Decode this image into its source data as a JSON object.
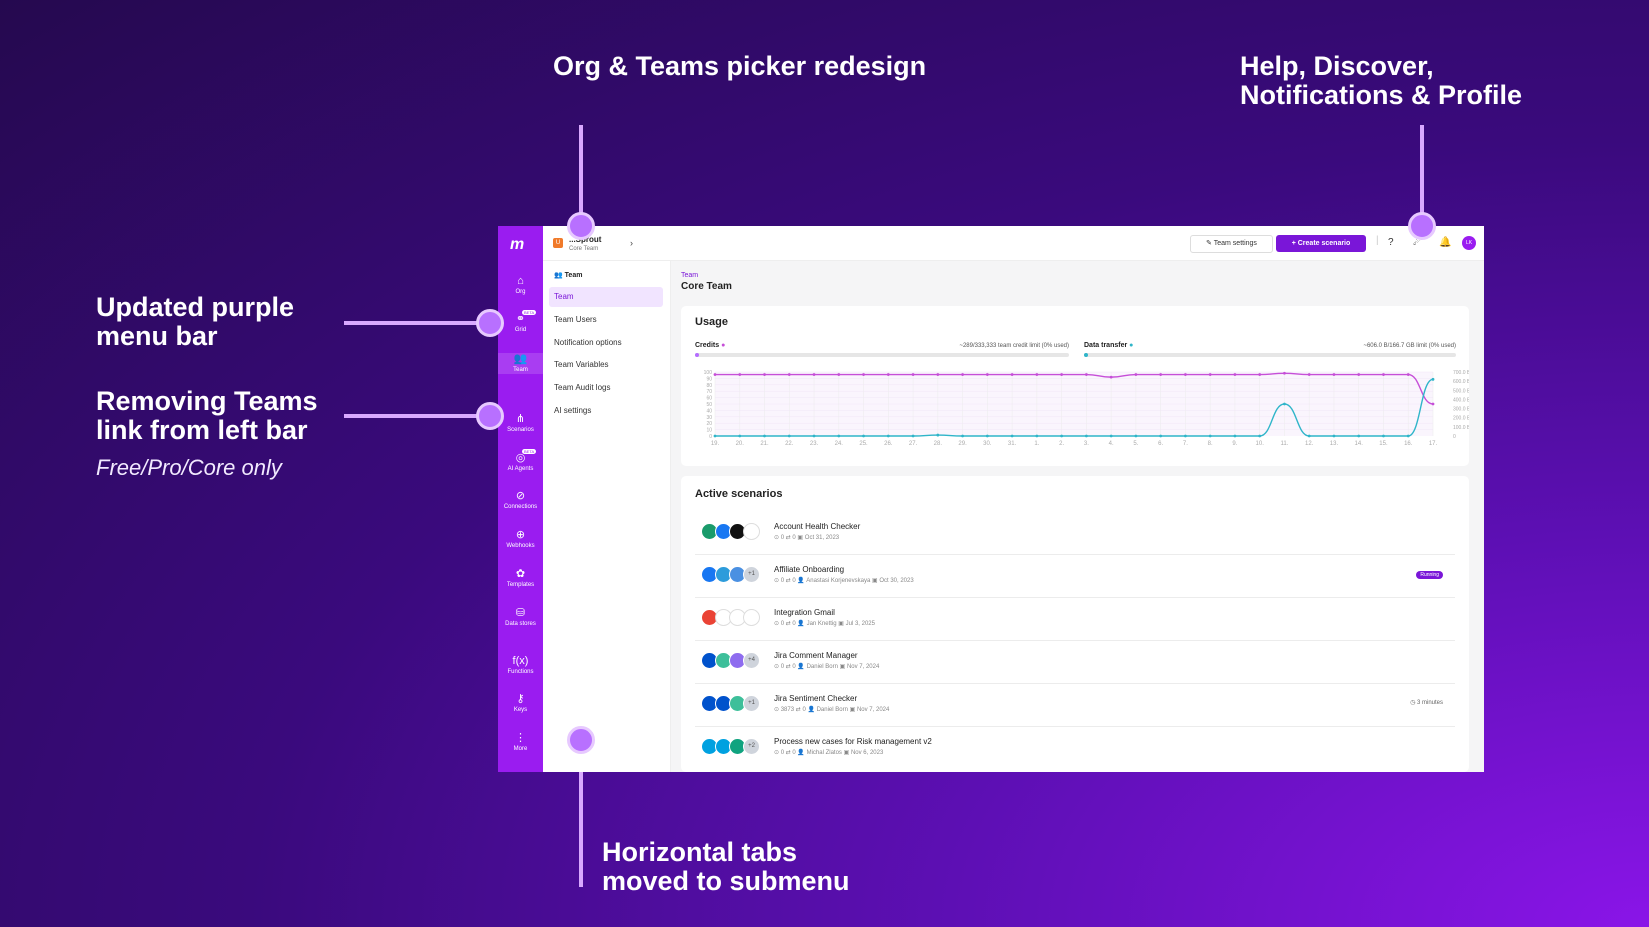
{
  "annotations": {
    "org_picker": "Org & Teams picker redesign",
    "help": "Help, Discover, Notifications & Profile",
    "purple_bar": "Updated purple menu bar",
    "teams_link": "Removing Teams link from left bar",
    "teams_link_sub": "Free/Pro/Core only",
    "tabs": "Horizontal tabs moved to submenu"
  },
  "leftbar": {
    "items": [
      {
        "label": "Org",
        "icon": "home-icon"
      },
      {
        "label": "Grid",
        "icon": "grid-icon",
        "badge": "BETA"
      },
      {
        "label": "Team",
        "icon": "team-icon"
      },
      {
        "label": "Scenarios",
        "icon": "scenarios-icon"
      },
      {
        "label": "AI Agents",
        "icon": "ai-agent-icon",
        "badge": "BETA"
      },
      {
        "label": "Connections",
        "icon": "link-icon"
      },
      {
        "label": "Webhooks",
        "icon": "globe-icon"
      },
      {
        "label": "Templates",
        "icon": "puzzle-icon"
      },
      {
        "label": "Data stores",
        "icon": "database-icon"
      },
      {
        "label": "Functions",
        "icon": "function-icon"
      },
      {
        "label": "Keys",
        "icon": "key-icon"
      },
      {
        "label": "More",
        "icon": "more-icon"
      }
    ]
  },
  "topbar": {
    "org_name": "...Sprout",
    "team_name": "Core Team",
    "org_initial": "U",
    "team_settings": "Team settings",
    "create_scenario": "Create scenario",
    "avatar": "LK"
  },
  "submenu": {
    "header": "Team",
    "items": [
      "Team",
      "Team Users",
      "Notification options",
      "Team Variables",
      "Team Audit logs",
      "AI settings"
    ]
  },
  "main": {
    "breadcrumb": "Team",
    "title": "Core Team",
    "usage": {
      "title": "Usage",
      "credits_label": "Credits",
      "credits_value": "~289/333,333 team credit limit (0% used)",
      "credits_fraction": 0.001,
      "transfer_label": "Data transfer",
      "transfer_value": "~606.0 B/166.7 GB limit (0% used)",
      "transfer_fraction": 0.001
    },
    "scenarios_title": "Active scenarios",
    "scenarios": [
      {
        "name": "Account Health Checker",
        "ops": "0",
        "transfers": "0",
        "user": "",
        "date": "Oct 31, 2023",
        "extra": "",
        "status": "",
        "duration": "",
        "bubbles": [
          "#1a9b6b",
          "#1877f2",
          "#111111",
          "#ffffff"
        ]
      },
      {
        "name": "Affiliate Onboarding",
        "ops": "0",
        "transfers": "0",
        "user": "Anastasi Korjenevskaya",
        "date": "Oct 30, 2023",
        "extra": "+1",
        "status": "Running",
        "duration": "",
        "bubbles": [
          "#1877f2",
          "#2d9cdb",
          "#4a90e2",
          "#cfd4dc"
        ]
      },
      {
        "name": "Integration Gmail",
        "ops": "0",
        "transfers": "0",
        "user": "Jan Knettig",
        "date": "Jul 3, 2025",
        "extra": "",
        "status": "",
        "duration": "",
        "bubbles": [
          "#ea4335",
          "#ffffff",
          "#ffffff",
          "#ffffff"
        ]
      },
      {
        "name": "Jira Comment Manager",
        "ops": "0",
        "transfers": "0",
        "user": "Daniel Born",
        "date": "Nov 7, 2024",
        "extra": "+4",
        "status": "",
        "duration": "",
        "bubbles": [
          "#0052cc",
          "#3dbf9a",
          "#8e6cef",
          "#cfd4dc"
        ]
      },
      {
        "name": "Jira Sentiment Checker",
        "ops": "3873",
        "transfers": "0",
        "user": "Daniel Born",
        "date": "Nov 7, 2024",
        "extra": "+1",
        "status": "",
        "duration": "3 minutes",
        "bubbles": [
          "#0052cc",
          "#0052cc",
          "#3dbf9a",
          "#cfd4dc"
        ]
      },
      {
        "name": "Process new cases for Risk management v2",
        "ops": "0",
        "transfers": "0",
        "user": "Michal Zlatos",
        "date": "Nov 6, 2023",
        "extra": "+2",
        "status": "",
        "duration": "",
        "bubbles": [
          "#00a1e0",
          "#00a1e0",
          "#10a37f",
          "#cfd4dc"
        ]
      }
    ]
  },
  "chart_data": {
    "type": "line",
    "x": [
      "19.",
      "20.",
      "21.",
      "22.",
      "23.",
      "24.",
      "25.",
      "26.",
      "27.",
      "28.",
      "29.",
      "30.",
      "31.",
      "1.",
      "2.",
      "3.",
      "4.",
      "5.",
      "6.",
      "7.",
      "8.",
      "9.",
      "10.",
      "11.",
      "12.",
      "13.",
      "14.",
      "15.",
      "16.",
      "17."
    ],
    "y_left_ticks": [
      "100",
      "90",
      "80",
      "70",
      "60",
      "50",
      "40",
      "30",
      "20",
      "10",
      "0"
    ],
    "y_right_ticks": [
      "700.0 B",
      "600.0 B",
      "500.0 B",
      "400.0 B",
      "300.0 B",
      "200.0 B",
      "100.0 B",
      "0"
    ],
    "ylim_left": [
      0,
      100
    ],
    "ylim_right": [
      0,
      700
    ],
    "series": [
      {
        "name": "Credits",
        "color": "#c64fd8",
        "axis": "left",
        "values": [
          96,
          96,
          96,
          96,
          96,
          96,
          96,
          96,
          96,
          96,
          96,
          96,
          96,
          96,
          96,
          96,
          92,
          96,
          96,
          96,
          96,
          96,
          96,
          98,
          96,
          96,
          96,
          96,
          96,
          50
        ]
      },
      {
        "name": "Data transfer",
        "color": "#2fb5c9",
        "axis": "right",
        "values": [
          0,
          0,
          0,
          0,
          0,
          0,
          0,
          0,
          0,
          10,
          0,
          0,
          0,
          0,
          0,
          0,
          0,
          0,
          0,
          0,
          0,
          0,
          0,
          350,
          0,
          0,
          0,
          0,
          0,
          620
        ]
      }
    ]
  }
}
